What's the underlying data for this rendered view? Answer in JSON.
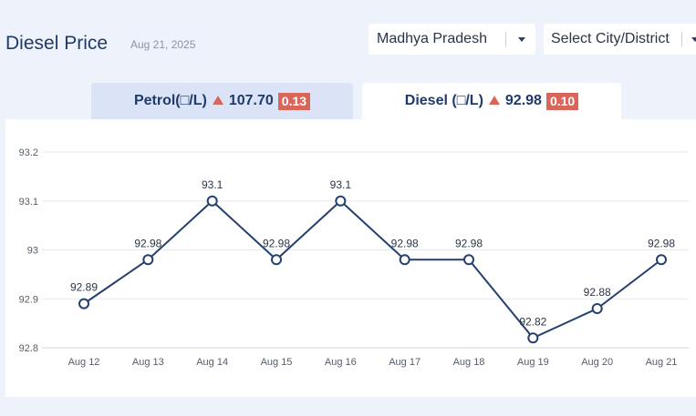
{
  "header": {
    "title": "Diesel Price",
    "date": "Aug 21, 2025"
  },
  "filters": {
    "state": "Madhya Pradesh",
    "city_placeholder": "Select City/District"
  },
  "tabs": [
    {
      "label": "Petrol(□/L)",
      "price": "107.70",
      "change": "0.13",
      "direction": "up"
    },
    {
      "label": "Diesel (□/L)",
      "price": "92.98",
      "change": "0.10",
      "direction": "up"
    }
  ],
  "colors": {
    "line": "#24406e",
    "increase_badge": "#d9665a",
    "title": "#1f3a6b"
  },
  "chart_data": {
    "type": "line",
    "categories": [
      "Aug 12",
      "Aug 13",
      "Aug 14",
      "Aug 15",
      "Aug 16",
      "Aug 17",
      "Aug 18",
      "Aug 19",
      "Aug 20",
      "Aug 21"
    ],
    "values": [
      92.89,
      92.98,
      93.1,
      92.98,
      93.1,
      92.98,
      92.98,
      92.82,
      92.88,
      92.98
    ],
    "point_labels": [
      "92.89",
      "92.98",
      "93.1",
      "92.98",
      "93.1",
      "92.98",
      "92.98",
      "92.82",
      "92.88",
      "92.98"
    ],
    "y_ticks": [
      "93.2",
      "93.1",
      "93",
      "92.9",
      "92.8"
    ],
    "ylim": [
      92.8,
      93.2
    ],
    "grid": true,
    "title": "",
    "xlabel": "",
    "ylabel": ""
  }
}
